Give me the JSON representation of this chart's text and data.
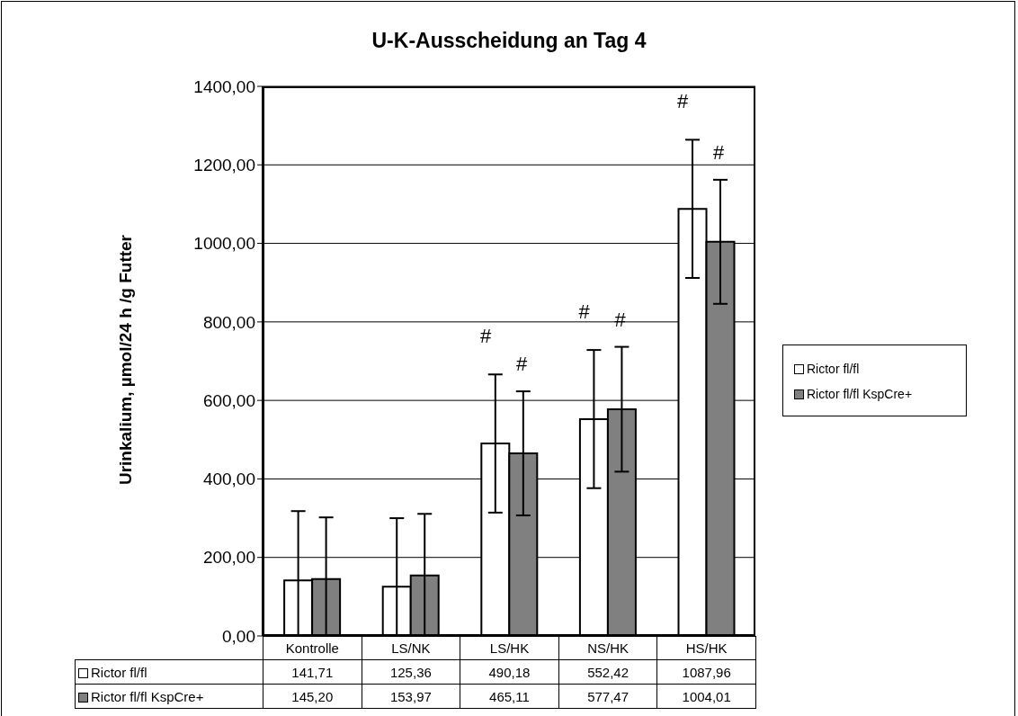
{
  "chart_data": {
    "type": "bar",
    "title": "U-K-Ausscheidung an Tag 4",
    "ylabel": "Urinkalium, µmol/24 h /g Futter",
    "categories": [
      "Kontrolle",
      "LS/NK",
      "LS/HK",
      "NS/HK",
      "HS/HK"
    ],
    "series": [
      {
        "name": "Rictor fl/fl",
        "color": "#ffffff",
        "values": [
          141.71,
          125.36,
          490.18,
          552.42,
          1087.96
        ],
        "errors": [
          [
            0,
            318
          ],
          [
            0,
            300
          ],
          176,
          176,
          176
        ],
        "value_labels": [
          "141,71",
          "125,36",
          "490,18",
          "552,42",
          "1087,96"
        ]
      },
      {
        "name": "Rictor fl/fl KspCre+",
        "color": "#808080",
        "values": [
          145.2,
          153.97,
          465.11,
          577.47,
          1004.01
        ],
        "errors": [
          [
            0,
            302
          ],
          [
            0,
            311
          ],
          158,
          159,
          158
        ],
        "value_labels": [
          "145,20",
          "153,97",
          "465,11",
          "577,47",
          "1004,01"
        ]
      }
    ],
    "ylim": [
      0,
      1400
    ],
    "yticks": [
      {
        "value": 0,
        "label": "0,00"
      },
      {
        "value": 200,
        "label": "200,00"
      },
      {
        "value": 400,
        "label": "400,00"
      },
      {
        "value": 600,
        "label": "600,00"
      },
      {
        "value": 800,
        "label": "800,00"
      },
      {
        "value": 1000,
        "label": "1000,00"
      },
      {
        "value": 1200,
        "label": "1200,00"
      },
      {
        "value": 1400,
        "label": "1400,00"
      }
    ],
    "grid": "y",
    "legend": "right",
    "annotations": [
      "#",
      "#",
      "#",
      "#",
      "#",
      "#"
    ]
  }
}
